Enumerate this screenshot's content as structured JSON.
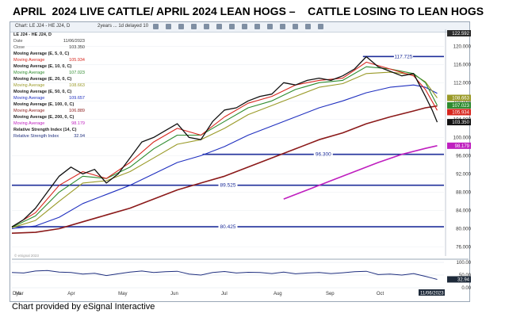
{
  "title": "APRIL  2024 LIVE CATTLE/ APRIL 2024 LEAN HOGS –    CATTLE LOSING TO LEAN HOGS",
  "caption": "Chart provided by eSignal Interactive",
  "toolbar": {
    "chart_label": "Chart: LE J24 - HE J24, D",
    "interval_label": "2years ... 1d delayed 10"
  },
  "legend": {
    "header": {
      "symbol": "LE J24 - HE J24, D",
      "date_label": "Date",
      "date": "11/06/2023",
      "close_label": "Close",
      "close": "103.350"
    },
    "items": [
      {
        "name": "Moving Average (E, 5, 0, C)",
        "label": "Moving Average",
        "value": "105.934",
        "color": "#d7261e"
      },
      {
        "name": "Moving Average (E, 10, 0, C)",
        "label": "Moving Average",
        "value": "107.023",
        "color": "#2e8b2e"
      },
      {
        "name": "Moving Average (E, 20, 0, C)",
        "label": "Moving Average",
        "value": "108.663",
        "color": "#9a9a28"
      },
      {
        "name": "Moving Average (E, 50, 0, C)",
        "label": "Moving Average",
        "value": "109.657",
        "color": "#1f2fbf"
      },
      {
        "name": "Moving Average (E, 100, 0, C)",
        "label": "Moving Average",
        "value": "106.889",
        "color": "#8b1a1a"
      },
      {
        "name": "Moving Average (E, 200, 0, C)",
        "label": "Moving Average",
        "value": "98.179",
        "color": "#bf1fbf"
      },
      {
        "name": "Relative Strength Index (14, C)",
        "label": "Relative Strength Index",
        "value": "32.94",
        "color": "#1f2f7f"
      }
    ]
  },
  "price_axis": {
    "ticks": [
      "120.000",
      "116.000",
      "112.000",
      "108.000",
      "104.000",
      "100.000",
      "96.000",
      "92.000",
      "88.000",
      "84.000",
      "80.000",
      "76.000"
    ],
    "top_value": "122.592"
  },
  "rsi_axis": {
    "ticks": [
      "100.00",
      "50.00",
      "0.00"
    ],
    "value": "32.94"
  },
  "x_axis": {
    "ticks": [
      "Dys",
      "Mar",
      "Apr",
      "May",
      "Jun",
      "Jul",
      "Aug",
      "Sep",
      "Oct"
    ],
    "current_date": "11/06/2023"
  },
  "value_tags": [
    {
      "value": "108.663",
      "bg": "#9a9a28"
    },
    {
      "value": "107.023",
      "bg": "#2e8b2e"
    },
    {
      "value": "105.934",
      "bg": "#d7261e"
    },
    {
      "value": "103.350",
      "bg": "#111111"
    },
    {
      "value": "98.179",
      "bg": "#bf1fbf"
    }
  ],
  "watermark": "© eSignal 2023",
  "chart_data": {
    "type": "line",
    "ylim": [
      74,
      123
    ],
    "rsi_ylim": [
      0,
      100
    ],
    "x_domain": [
      "2023-02-27",
      "2023-11-10"
    ],
    "horizontal_levels": [
      {
        "value": 117.725,
        "label": "117.725",
        "x_start": "2023-09-23",
        "x_end": "2023-11-10"
      },
      {
        "value": 96.3,
        "label": "96.300",
        "x_start": "2023-06-20",
        "x_end": "2023-11-10"
      },
      {
        "value": 89.525,
        "label": "89.525",
        "x_start": "2023-02-27",
        "x_end": "2023-11-10"
      },
      {
        "value": 80.425,
        "label": "80.425",
        "x_start": "2023-02-27",
        "x_end": "2023-11-10"
      }
    ],
    "series": [
      {
        "key": "close",
        "color": "#111111",
        "points": [
          [
            "2023-02-27",
            80.4
          ],
          [
            "2023-03-06",
            82.0
          ],
          [
            "2023-03-13",
            84.5
          ],
          [
            "2023-03-20",
            88.0
          ],
          [
            "2023-03-27",
            91.5
          ],
          [
            "2023-04-03",
            93.5
          ],
          [
            "2023-04-10",
            92.0
          ],
          [
            "2023-04-17",
            93.0
          ],
          [
            "2023-04-24",
            90.0
          ],
          [
            "2023-05-01",
            92.0
          ],
          [
            "2023-05-08",
            95.5
          ],
          [
            "2023-05-15",
            99.0
          ],
          [
            "2023-05-22",
            100.0
          ],
          [
            "2023-05-29",
            101.5
          ],
          [
            "2023-06-05",
            103.0
          ],
          [
            "2023-06-12",
            100.0
          ],
          [
            "2023-06-19",
            99.5
          ],
          [
            "2023-06-26",
            103.5
          ],
          [
            "2023-07-03",
            106.0
          ],
          [
            "2023-07-10",
            106.5
          ],
          [
            "2023-07-17",
            108.0
          ],
          [
            "2023-07-24",
            109.0
          ],
          [
            "2023-07-31",
            109.5
          ],
          [
            "2023-08-07",
            112.0
          ],
          [
            "2023-08-14",
            111.5
          ],
          [
            "2023-08-21",
            112.5
          ],
          [
            "2023-08-28",
            113.0
          ],
          [
            "2023-09-04",
            112.5
          ],
          [
            "2023-09-11",
            113.5
          ],
          [
            "2023-09-18",
            115.0
          ],
          [
            "2023-09-25",
            117.7
          ],
          [
            "2023-10-02",
            115.5
          ],
          [
            "2023-10-09",
            114.5
          ],
          [
            "2023-10-16",
            113.5
          ],
          [
            "2023-10-23",
            114.0
          ],
          [
            "2023-10-30",
            109.0
          ],
          [
            "2023-11-03",
            106.0
          ],
          [
            "2023-11-06",
            103.35
          ]
        ]
      },
      {
        "key": "ema5",
        "color": "#d7261e",
        "points": [
          [
            "2023-02-27",
            80.4
          ],
          [
            "2023-03-13",
            83.5
          ],
          [
            "2023-03-27",
            89.5
          ],
          [
            "2023-04-10",
            92.5
          ],
          [
            "2023-04-24",
            91.0
          ],
          [
            "2023-05-08",
            94.5
          ],
          [
            "2023-05-22",
            99.0
          ],
          [
            "2023-06-05",
            102.0
          ],
          [
            "2023-06-19",
            100.5
          ],
          [
            "2023-07-03",
            104.5
          ],
          [
            "2023-07-17",
            107.5
          ],
          [
            "2023-07-31",
            109.0
          ],
          [
            "2023-08-14",
            111.5
          ],
          [
            "2023-08-28",
            112.5
          ],
          [
            "2023-09-11",
            113.0
          ],
          [
            "2023-09-25",
            116.5
          ],
          [
            "2023-10-09",
            115.0
          ],
          [
            "2023-10-23",
            113.5
          ],
          [
            "2023-10-30",
            110.5
          ],
          [
            "2023-11-06",
            105.934
          ]
        ]
      },
      {
        "key": "ema10",
        "color": "#2e8b2e",
        "points": [
          [
            "2023-02-27",
            80.3
          ],
          [
            "2023-03-13",
            82.8
          ],
          [
            "2023-03-27",
            88.0
          ],
          [
            "2023-04-10",
            91.5
          ],
          [
            "2023-04-24",
            91.0
          ],
          [
            "2023-05-08",
            93.5
          ],
          [
            "2023-05-22",
            97.5
          ],
          [
            "2023-06-05",
            100.5
          ],
          [
            "2023-06-19",
            100.5
          ],
          [
            "2023-07-03",
            103.5
          ],
          [
            "2023-07-17",
            106.5
          ],
          [
            "2023-07-31",
            108.0
          ],
          [
            "2023-08-14",
            110.5
          ],
          [
            "2023-08-28",
            112.0
          ],
          [
            "2023-09-11",
            112.5
          ],
          [
            "2023-09-25",
            115.5
          ],
          [
            "2023-10-09",
            115.0
          ],
          [
            "2023-10-23",
            114.0
          ],
          [
            "2023-10-30",
            112.0
          ],
          [
            "2023-11-06",
            107.023
          ]
        ]
      },
      {
        "key": "ema20",
        "color": "#9a9a28",
        "points": [
          [
            "2023-02-27",
            80.2
          ],
          [
            "2023-03-13",
            81.8
          ],
          [
            "2023-03-27",
            86.0
          ],
          [
            "2023-04-10",
            90.0
          ],
          [
            "2023-04-24",
            90.5
          ],
          [
            "2023-05-08",
            92.5
          ],
          [
            "2023-05-22",
            95.5
          ],
          [
            "2023-06-05",
            98.5
          ],
          [
            "2023-06-19",
            99.5
          ],
          [
            "2023-07-03",
            102.0
          ],
          [
            "2023-07-17",
            105.0
          ],
          [
            "2023-07-31",
            107.0
          ],
          [
            "2023-08-14",
            109.0
          ],
          [
            "2023-08-28",
            111.0
          ],
          [
            "2023-09-11",
            111.8
          ],
          [
            "2023-09-25",
            114.0
          ],
          [
            "2023-10-09",
            114.3
          ],
          [
            "2023-10-23",
            113.8
          ],
          [
            "2023-10-30",
            112.2
          ],
          [
            "2023-11-06",
            108.663
          ]
        ]
      },
      {
        "key": "ema50",
        "color": "#1f2fbf",
        "points": [
          [
            "2023-02-27",
            80.0
          ],
          [
            "2023-03-13",
            80.6
          ],
          [
            "2023-03-27",
            82.5
          ],
          [
            "2023-04-10",
            85.5
          ],
          [
            "2023-04-24",
            87.5
          ],
          [
            "2023-05-08",
            89.5
          ],
          [
            "2023-05-22",
            92.0
          ],
          [
            "2023-06-05",
            94.5
          ],
          [
            "2023-06-19",
            96.0
          ],
          [
            "2023-07-03",
            98.0
          ],
          [
            "2023-07-17",
            100.5
          ],
          [
            "2023-07-31",
            102.5
          ],
          [
            "2023-08-14",
            104.5
          ],
          [
            "2023-08-28",
            106.5
          ],
          [
            "2023-09-11",
            108.0
          ],
          [
            "2023-09-25",
            109.8
          ],
          [
            "2023-10-09",
            111.0
          ],
          [
            "2023-10-23",
            111.5
          ],
          [
            "2023-10-30",
            111.0
          ],
          [
            "2023-11-06",
            109.657
          ]
        ]
      },
      {
        "key": "ema100",
        "color": "#8b1a1a",
        "points": [
          [
            "2023-02-27",
            79.0
          ],
          [
            "2023-03-13",
            79.2
          ],
          [
            "2023-03-27",
            80.0
          ],
          [
            "2023-04-10",
            81.5
          ],
          [
            "2023-04-24",
            83.0
          ],
          [
            "2023-05-08",
            84.5
          ],
          [
            "2023-05-22",
            86.5
          ],
          [
            "2023-06-05",
            88.5
          ],
          [
            "2023-06-19",
            90.0
          ],
          [
            "2023-07-03",
            91.5
          ],
          [
            "2023-07-17",
            93.5
          ],
          [
            "2023-07-31",
            95.5
          ],
          [
            "2023-08-14",
            97.5
          ],
          [
            "2023-08-28",
            99.5
          ],
          [
            "2023-09-11",
            101.0
          ],
          [
            "2023-09-25",
            103.0
          ],
          [
            "2023-10-09",
            104.5
          ],
          [
            "2023-10-23",
            105.8
          ],
          [
            "2023-10-30",
            106.5
          ],
          [
            "2023-11-06",
            106.889
          ]
        ]
      },
      {
        "key": "ema200",
        "color": "#bf1fbf",
        "points": [
          [
            "2023-08-07",
            86.5
          ],
          [
            "2023-08-21",
            88.5
          ],
          [
            "2023-09-04",
            90.5
          ],
          [
            "2023-09-18",
            92.5
          ],
          [
            "2023-10-02",
            94.5
          ],
          [
            "2023-10-16",
            96.3
          ],
          [
            "2023-10-30",
            97.6
          ],
          [
            "2023-11-06",
            98.179
          ]
        ]
      }
    ],
    "rsi": [
      [
        "2023-02-27",
        60
      ],
      [
        "2023-03-06",
        58
      ],
      [
        "2023-03-13",
        66
      ],
      [
        "2023-03-20",
        68
      ],
      [
        "2023-03-27",
        62
      ],
      [
        "2023-04-03",
        60
      ],
      [
        "2023-04-10",
        54
      ],
      [
        "2023-04-17",
        57
      ],
      [
        "2023-04-24",
        48
      ],
      [
        "2023-05-01",
        55
      ],
      [
        "2023-05-08",
        62
      ],
      [
        "2023-05-15",
        66
      ],
      [
        "2023-05-22",
        60
      ],
      [
        "2023-05-29",
        63
      ],
      [
        "2023-06-05",
        65
      ],
      [
        "2023-06-12",
        54
      ],
      [
        "2023-06-19",
        50
      ],
      [
        "2023-06-26",
        60
      ],
      [
        "2023-07-03",
        64
      ],
      [
        "2023-07-10",
        58
      ],
      [
        "2023-07-17",
        61
      ],
      [
        "2023-07-24",
        60
      ],
      [
        "2023-07-31",
        56
      ],
      [
        "2023-08-07",
        62
      ],
      [
        "2023-08-14",
        55
      ],
      [
        "2023-08-21",
        58
      ],
      [
        "2023-08-28",
        60
      ],
      [
        "2023-09-04",
        56
      ],
      [
        "2023-09-11",
        59
      ],
      [
        "2023-09-18",
        63
      ],
      [
        "2023-09-25",
        65
      ],
      [
        "2023-10-02",
        52
      ],
      [
        "2023-10-09",
        54
      ],
      [
        "2023-10-16",
        50
      ],
      [
        "2023-10-23",
        56
      ],
      [
        "2023-10-30",
        45
      ],
      [
        "2023-11-03",
        38
      ],
      [
        "2023-11-06",
        32.94
      ]
    ]
  }
}
